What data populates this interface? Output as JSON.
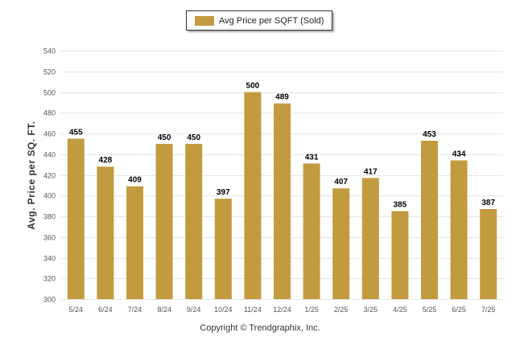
{
  "colors": {
    "bar": "#C39B3F",
    "grid": "#E6E6E6"
  },
  "footer": {
    "copyright": "Copyright © Trendgraphix, Inc."
  },
  "chart_data": {
    "type": "bar",
    "categories": [
      "5/24",
      "6/24",
      "7/24",
      "8/24",
      "9/24",
      "10/24",
      "11/24",
      "12/24",
      "1/25",
      "2/25",
      "3/25",
      "4/25",
      "5/25",
      "6/25",
      "7/25"
    ],
    "series": [
      {
        "name": "Avg Price per SQFT (Sold)",
        "values": [
          455,
          428,
          409,
          450,
          450,
          397,
          500,
          489,
          431,
          407,
          417,
          385,
          453,
          434,
          387
        ]
      }
    ],
    "ylabel": "Avg. Price per SQ. FT.",
    "xlabel": "",
    "ylim": [
      300,
      540
    ],
    "yticks": [
      300,
      320,
      340,
      360,
      380,
      400,
      420,
      440,
      460,
      480,
      500,
      520,
      540
    ],
    "grid": true,
    "legend_position": "top-center",
    "data_labels": true
  }
}
